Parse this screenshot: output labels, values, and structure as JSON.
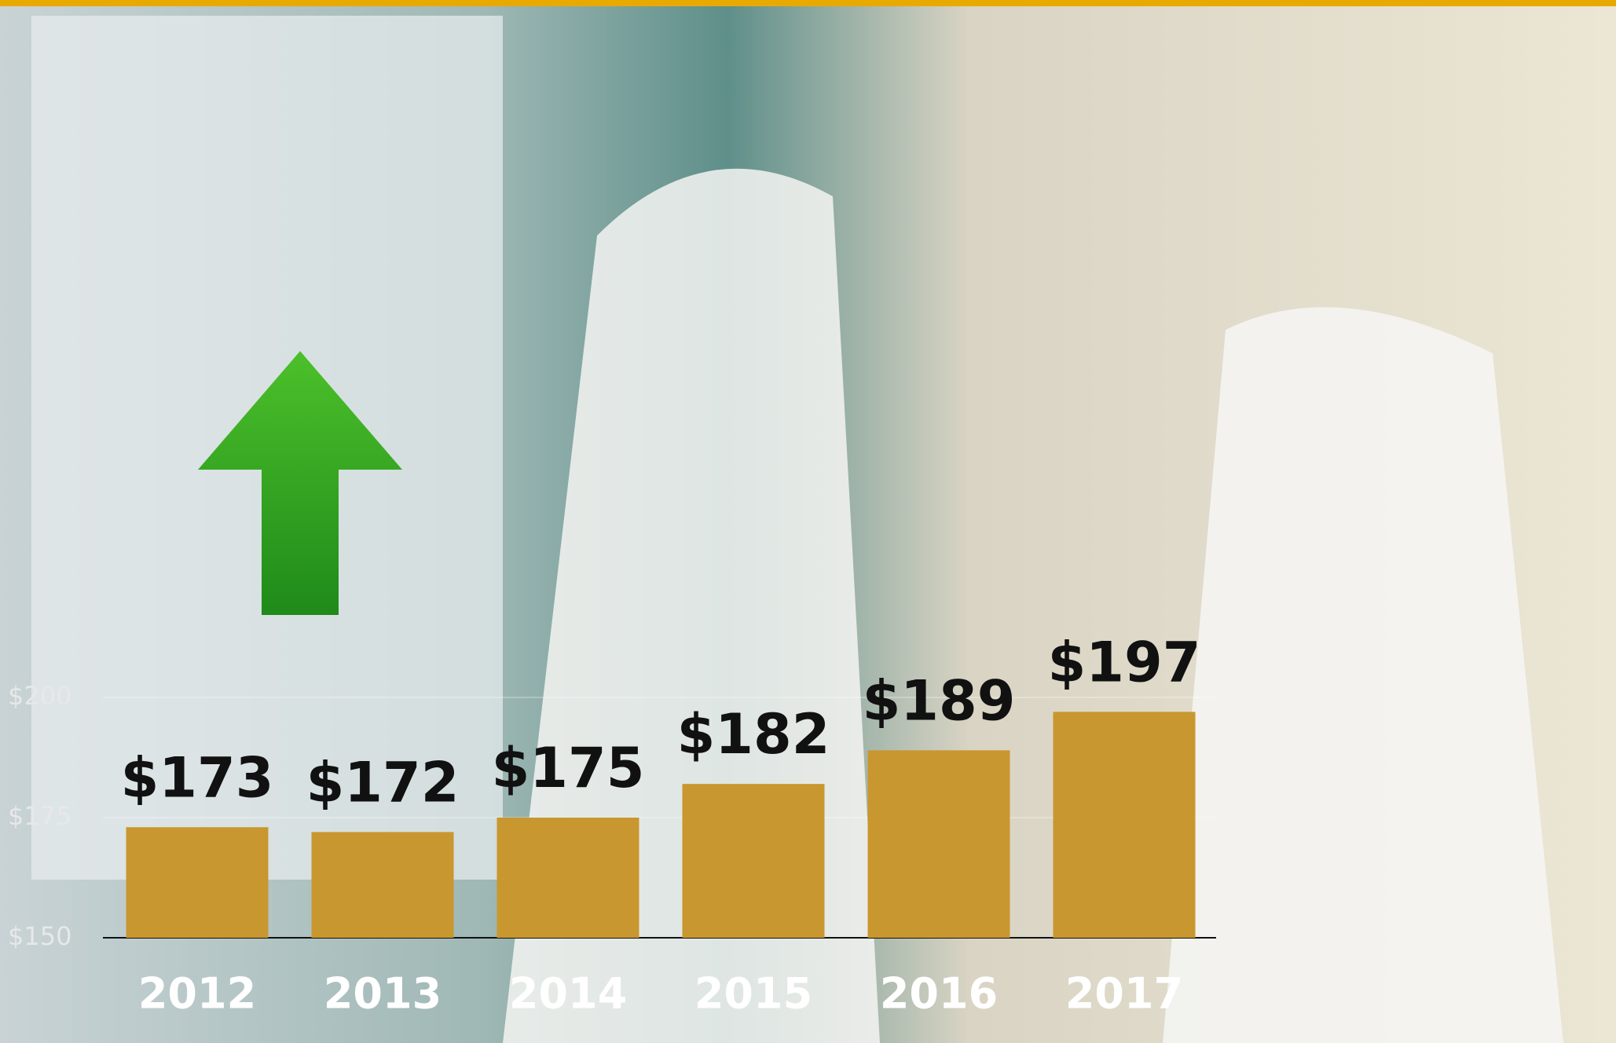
{
  "chart_data": {
    "type": "bar",
    "categories": [
      "2012",
      "2013",
      "2014",
      "2015",
      "2016",
      "2017"
    ],
    "values": [
      173,
      172,
      175,
      182,
      189,
      197
    ],
    "value_labels": [
      "$173",
      "$172",
      "$175",
      "$182",
      "$189",
      "$197"
    ],
    "color": "#c9972f",
    "ylim": [
      150,
      200
    ],
    "yticks": [
      {
        "value": 150,
        "label": "$150"
      },
      {
        "value": 175,
        "label": "$175"
      },
      {
        "value": 200,
        "label": "$200"
      }
    ],
    "grid": true
  }
}
